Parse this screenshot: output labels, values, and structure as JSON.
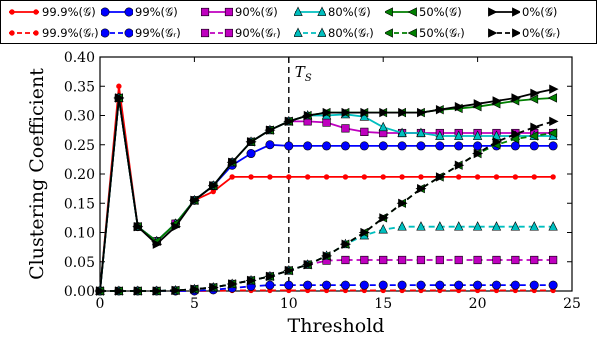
{
  "chart_data": {
    "type": "line",
    "xlabel": "Threshold",
    "ylabel": "Clustering Coefficient",
    "xlim": [
      0,
      25
    ],
    "ylim": [
      0,
      0.4
    ],
    "xticks": [
      "0",
      "5",
      "10",
      "15",
      "20",
      "25"
    ],
    "yticks": [
      "0.00",
      "0.05",
      "0.10",
      "0.15",
      "0.20",
      "0.25",
      "0.30",
      "0.35",
      "0.40"
    ],
    "grid": false,
    "legend_position": "top",
    "annotation": {
      "text": "T",
      "subscript": "S",
      "x": 10
    },
    "x": [
      0,
      1,
      2,
      3,
      4,
      5,
      6,
      7,
      8,
      9,
      10,
      11,
      12,
      13,
      14,
      15,
      16,
      17,
      18,
      19,
      20,
      21,
      22,
      23,
      24
    ],
    "series": [
      {
        "name": "99.9%(𝒢)",
        "color": "#ff0000",
        "marker": "dot",
        "style": "solid",
        "values": [
          0,
          0.35,
          0.11,
          0.085,
          0.115,
          0.155,
          0.17,
          0.195,
          0.195,
          0.195,
          0.195,
          0.195,
          0.195,
          0.195,
          0.195,
          0.195,
          0.195,
          0.195,
          0.195,
          0.195,
          0.195,
          0.195,
          0.195,
          0.195,
          0.195
        ]
      },
      {
        "name": "99%(𝒢)",
        "color": "#0000ff",
        "marker": "circle",
        "style": "solid",
        "values": [
          0,
          0.33,
          0.11,
          0.085,
          0.115,
          0.155,
          0.18,
          0.215,
          0.235,
          0.25,
          0.248,
          0.248,
          0.248,
          0.248,
          0.248,
          0.248,
          0.248,
          0.248,
          0.248,
          0.248,
          0.248,
          0.248,
          0.248,
          0.248,
          0.248
        ]
      },
      {
        "name": "90%(𝒢)",
        "color": "#bf00bf",
        "marker": "square",
        "style": "solid",
        "values": [
          0,
          0.33,
          0.11,
          0.085,
          0.115,
          0.155,
          0.18,
          0.22,
          0.255,
          0.275,
          0.29,
          0.29,
          0.288,
          0.278,
          0.272,
          0.27,
          0.27,
          0.27,
          0.27,
          0.27,
          0.27,
          0.27,
          0.27,
          0.27,
          0.27
        ]
      },
      {
        "name": "80%(𝒢)",
        "color": "#00bfbf",
        "marker": "triangle-up",
        "style": "solid",
        "values": [
          0,
          0.33,
          0.11,
          0.085,
          0.115,
          0.155,
          0.18,
          0.22,
          0.255,
          0.275,
          0.29,
          0.3,
          0.3,
          0.302,
          0.298,
          0.28,
          0.27,
          0.27,
          0.265,
          0.265,
          0.265,
          0.265,
          0.265,
          0.265,
          0.265
        ]
      },
      {
        "name": "50%(𝒢)",
        "color": "#007f00",
        "marker": "triangle-left",
        "style": "solid",
        "values": [
          0,
          0.33,
          0.11,
          0.085,
          0.115,
          0.155,
          0.18,
          0.22,
          0.255,
          0.275,
          0.29,
          0.3,
          0.305,
          0.305,
          0.305,
          0.305,
          0.305,
          0.305,
          0.31,
          0.312,
          0.315,
          0.32,
          0.325,
          0.328,
          0.33
        ]
      },
      {
        "name": "0%(𝒢)",
        "color": "#000000",
        "marker": "triangle-right",
        "style": "solid",
        "values": [
          0,
          0.33,
          0.11,
          0.08,
          0.11,
          0.155,
          0.18,
          0.22,
          0.255,
          0.275,
          0.29,
          0.3,
          0.305,
          0.305,
          0.305,
          0.305,
          0.305,
          0.305,
          0.31,
          0.315,
          0.32,
          0.325,
          0.33,
          0.338,
          0.345
        ]
      },
      {
        "name": "99.9%(𝒢ᵣ)",
        "color": "#ff0000",
        "marker": "dot",
        "style": "dashed",
        "values": [
          0,
          0,
          0,
          0,
          0,
          0,
          0,
          0.001,
          0.001,
          0.001,
          0.001,
          0.001,
          0.001,
          0.001,
          0.001,
          0.001,
          0.001,
          0.001,
          0.001,
          0.001,
          0.001,
          0.001,
          0.001,
          0.001,
          0.001
        ]
      },
      {
        "name": "99%(𝒢ᵣ)",
        "color": "#0000ff",
        "marker": "circle",
        "style": "dashed",
        "values": [
          0,
          0,
          0,
          0,
          0,
          0,
          0.002,
          0.005,
          0.008,
          0.01,
          0.01,
          0.01,
          0.01,
          0.01,
          0.01,
          0.01,
          0.01,
          0.01,
          0.01,
          0.01,
          0.01,
          0.01,
          0.01,
          0.01,
          0.01
        ]
      },
      {
        "name": "90%(𝒢ᵣ)",
        "color": "#bf00bf",
        "marker": "square",
        "style": "dashed",
        "values": [
          0,
          0,
          0,
          0,
          0.001,
          0.003,
          0.006,
          0.012,
          0.018,
          0.025,
          0.035,
          0.045,
          0.052,
          0.053,
          0.053,
          0.053,
          0.053,
          0.053,
          0.053,
          0.053,
          0.053,
          0.053,
          0.053,
          0.053,
          0.053
        ]
      },
      {
        "name": "80%(𝒢ᵣ)",
        "color": "#00bfbf",
        "marker": "triangle-up",
        "style": "dashed",
        "values": [
          0,
          0,
          0,
          0,
          0.001,
          0.003,
          0.006,
          0.012,
          0.018,
          0.025,
          0.035,
          0.045,
          0.06,
          0.08,
          0.095,
          0.105,
          0.11,
          0.11,
          0.11,
          0.11,
          0.11,
          0.11,
          0.11,
          0.11,
          0.11
        ]
      },
      {
        "name": "50%(𝒢ᵣ)",
        "color": "#007f00",
        "marker": "triangle-left",
        "style": "dashed",
        "values": [
          0,
          0,
          0,
          0,
          0.001,
          0.003,
          0.006,
          0.012,
          0.018,
          0.025,
          0.035,
          0.045,
          0.06,
          0.08,
          0.1,
          0.125,
          0.15,
          0.175,
          0.195,
          0.215,
          0.235,
          0.25,
          0.26,
          0.265,
          0.27
        ]
      },
      {
        "name": "0%(𝒢ᵣ)",
        "color": "#000000",
        "marker": "triangle-right",
        "style": "dashed",
        "values": [
          0,
          0,
          0,
          0,
          0.001,
          0.003,
          0.006,
          0.012,
          0.018,
          0.025,
          0.035,
          0.045,
          0.06,
          0.08,
          0.1,
          0.125,
          0.15,
          0.175,
          0.195,
          0.215,
          0.235,
          0.255,
          0.268,
          0.28,
          0.29
        ]
      }
    ]
  }
}
